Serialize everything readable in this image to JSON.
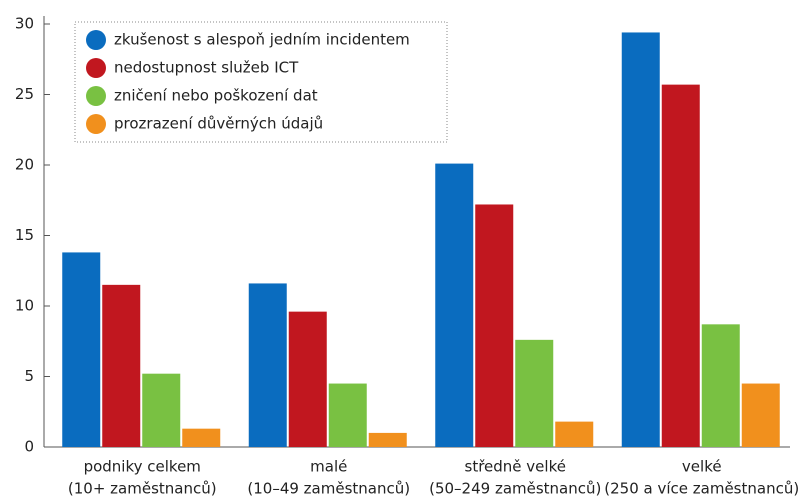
{
  "chart_data": {
    "type": "bar",
    "categories": [
      [
        "podniky celkem",
        "(10+ zaměstnanců)"
      ],
      [
        "malé",
        "(10–49 zaměstnanců)"
      ],
      [
        "středně velké",
        "(50–249 zaměstnanců)"
      ],
      [
        "velké",
        "(250 a více zaměstnanců)"
      ]
    ],
    "series": [
      {
        "name": "zkušenost s alespoň jedním incidentem",
        "color": "#0a6cbf",
        "values": [
          13.8,
          11.6,
          20.1,
          29.4
        ]
      },
      {
        "name": "nedostupnost služeb ICT",
        "color": "#c1171f",
        "values": [
          11.5,
          9.6,
          17.2,
          25.7
        ]
      },
      {
        "name": "zničení nebo poškození dat",
        "color": "#79c142",
        "values": [
          5.2,
          4.5,
          7.6,
          8.7
        ]
      },
      {
        "name": "prozrazení důvěrných údajů",
        "color": "#f1901d",
        "values": [
          1.3,
          1.0,
          1.8,
          4.5
        ]
      }
    ],
    "ylim": [
      0,
      30
    ],
    "yticks": [
      0,
      5,
      10,
      15,
      20,
      25,
      30
    ],
    "legend": "upper left"
  }
}
